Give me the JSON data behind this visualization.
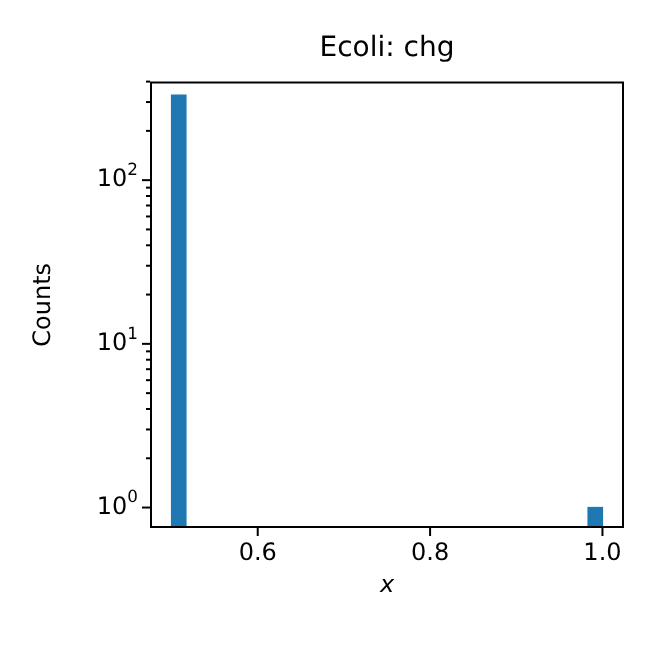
{
  "chart_data": {
    "type": "histogram",
    "title": "Ecoli: chg",
    "xlabel": "x",
    "ylabel": "Counts",
    "color": "#1f77b4",
    "bins": [
      0.5,
      0.5167,
      0.5333,
      0.55,
      0.5667,
      0.5833,
      0.6,
      0.6167,
      0.6333,
      0.65,
      0.6667,
      0.6833,
      0.7,
      0.7167,
      0.7333,
      0.75,
      0.7667,
      0.7833,
      0.8,
      0.8167,
      0.8333,
      0.85,
      0.8667,
      0.8833,
      0.9,
      0.9167,
      0.9333,
      0.95,
      0.9667,
      0.9833,
      1.0
    ],
    "values": [
      330,
      null,
      null,
      null,
      null,
      null,
      null,
      null,
      null,
      null,
      null,
      null,
      null,
      null,
      null,
      null,
      null,
      null,
      null,
      null,
      null,
      null,
      null,
      null,
      null,
      null,
      null,
      null,
      null,
      1
    ],
    "log": "y",
    "xlim": [
      0.475,
      1.025
    ],
    "ylim": [
      0.75,
      400
    ],
    "xticks": [
      0.6,
      0.8,
      {
        "value": 1.0,
        "label": "1.0"
      }
    ],
    "yticks": [
      {
        "value": 1,
        "label": "10$^{0}$"
      },
      {
        "value": 2,
        "label": null
      },
      {
        "value": 3,
        "label": null
      },
      {
        "value": 4,
        "label": null
      },
      {
        "value": 5,
        "label": null
      },
      {
        "value": 6,
        "label": null
      },
      {
        "value": 7,
        "label": null
      },
      {
        "value": 8,
        "label": null
      },
      {
        "value": 9,
        "label": null
      },
      {
        "value": 10,
        "label": "10$^{1}$"
      },
      {
        "value": 20,
        "label": null
      },
      {
        "value": 30,
        "label": null
      },
      {
        "value": 40,
        "label": null
      },
      {
        "value": 50,
        "label": null
      },
      {
        "value": 60,
        "label": null
      },
      {
        "value": 70,
        "label": null
      },
      {
        "value": 80,
        "label": null
      },
      {
        "value": 90,
        "label": null
      },
      {
        "value": 100,
        "label": "10$^{2}$"
      },
      {
        "value": 200,
        "label": null
      },
      {
        "value": 300,
        "label": null
      },
      {
        "value": 400,
        "label": null
      }
    ],
    "grid": false
  }
}
